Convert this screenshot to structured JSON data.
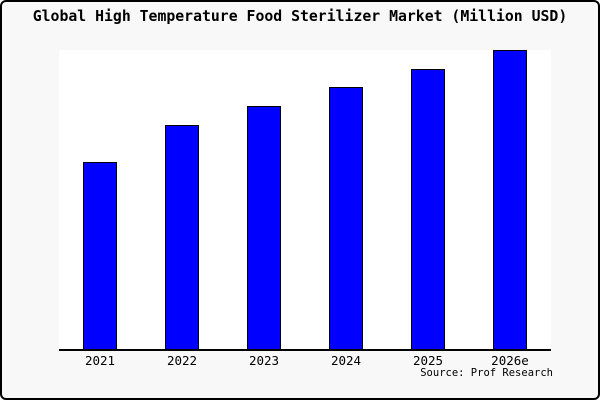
{
  "window": {
    "background_color": "#f8f8f8",
    "border_color": "#000000",
    "plot_background_color": "#ffffff"
  },
  "chart_data": {
    "type": "bar",
    "title": "Global High Temperature Food Sterilizer Market (Million USD)",
    "categories": [
      "2021",
      "2022",
      "2023",
      "2024",
      "2025",
      "2026e"
    ],
    "values": [
      62.7,
      75.0,
      81.3,
      87.7,
      93.7,
      100.0
    ],
    "value_unit": "percent of tallest bar (y-axis has no tick labels in image)",
    "xlabel": "",
    "ylabel": "",
    "ylim_note": "no numeric y scale shown",
    "grid": false,
    "legend": false,
    "bar_color": "#0000ff",
    "bar_edge_color": "#000000"
  },
  "source": {
    "label": "Source: Prof Research"
  }
}
